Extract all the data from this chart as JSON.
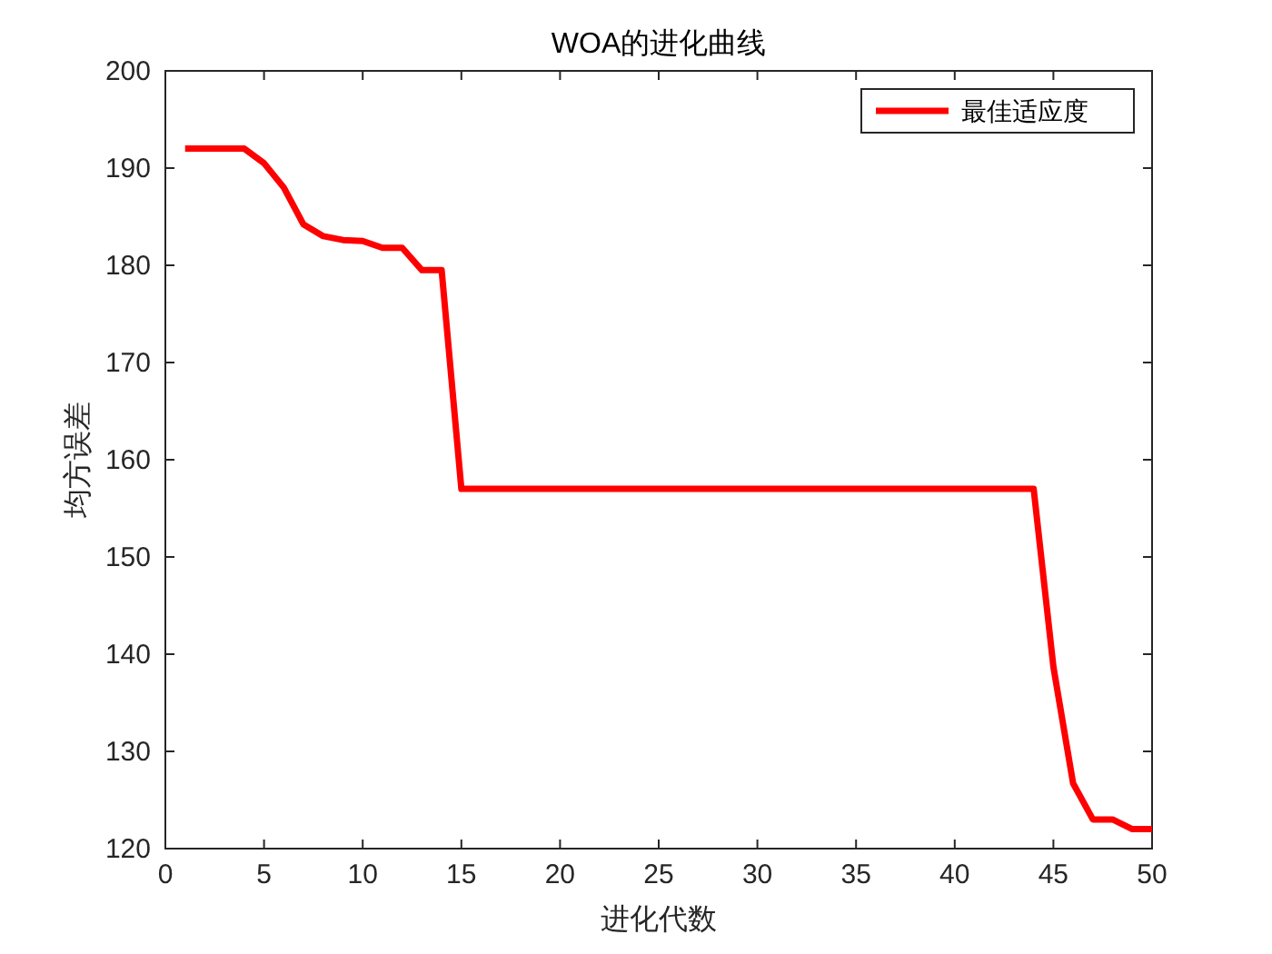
{
  "chart_data": {
    "type": "line",
    "title": "WOA的进化曲线",
    "xlabel": "进化代数",
    "ylabel": "均方误差",
    "x": [
      1,
      2,
      3,
      4,
      5,
      6,
      7,
      8,
      9,
      10,
      11,
      12,
      13,
      14,
      15,
      16,
      17,
      18,
      19,
      20,
      21,
      22,
      23,
      24,
      25,
      26,
      27,
      28,
      29,
      30,
      31,
      32,
      33,
      34,
      35,
      36,
      37,
      38,
      39,
      40,
      41,
      42,
      43,
      44,
      45,
      46,
      47,
      48,
      49,
      50
    ],
    "series": [
      {
        "name": "最佳适应度",
        "color": "#ff0000",
        "values": [
          192,
          192,
          192,
          192,
          190.5,
          188,
          184.2,
          183,
          182.6,
          182.5,
          181.8,
          181.8,
          179.5,
          179.5,
          157,
          157,
          157,
          157,
          157,
          157,
          157,
          157,
          157,
          157,
          157,
          157,
          157,
          157,
          157,
          157,
          157,
          157,
          157,
          157,
          157,
          157,
          157,
          157,
          157,
          157,
          157,
          157,
          157,
          157,
          138.7,
          126.7,
          123,
          123,
          122,
          122
        ]
      }
    ],
    "xlim": [
      0,
      50
    ],
    "ylim": [
      120,
      200
    ],
    "xticks": [
      0,
      5,
      10,
      15,
      20,
      25,
      30,
      35,
      40,
      45,
      50
    ],
    "yticks": [
      120,
      130,
      140,
      150,
      160,
      170,
      180,
      190,
      200
    ],
    "legend": "top right",
    "grid": false,
    "marker": "none",
    "line_style": "solid"
  }
}
